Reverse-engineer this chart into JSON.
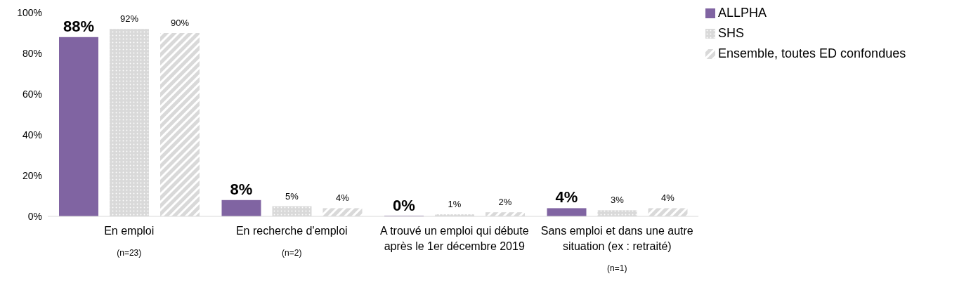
{
  "chart_data": {
    "type": "bar",
    "categories": [
      "En emploi",
      "En recherche d'emploi",
      "A trouvé un emploi qui débute après le 1er décembre 2019",
      "Sans emploi et dans une autre situation (ex : retraité)"
    ],
    "series": [
      {
        "name": "ALLPHA",
        "color": "#8064a2",
        "values": [
          88,
          8,
          0,
          4
        ],
        "value_labels": [
          "88%",
          "8%",
          "0%",
          "4%"
        ]
      },
      {
        "name": "SHS",
        "color": "#d9d9d9",
        "values": [
          92,
          5,
          1,
          3
        ],
        "value_labels": [
          "92%",
          "5%",
          "1%",
          "3%"
        ]
      },
      {
        "name": "Ensemble, toutes ED confondues",
        "color": "#d9d9d9",
        "values": [
          90,
          4,
          2,
          4
        ],
        "value_labels": [
          "90%",
          "4%",
          "2%",
          "4%"
        ]
      }
    ],
    "ylim": [
      0,
      100
    ],
    "yticks": [
      {
        "value": 0,
        "label": "0%"
      },
      {
        "value": 20,
        "label": "20%"
      },
      {
        "value": 40,
        "label": "40%"
      },
      {
        "value": 60,
        "label": "60%"
      },
      {
        "value": 80,
        "label": "80%"
      },
      {
        "value": 100,
        "label": "100%"
      }
    ],
    "annotations": [
      "(n=23)",
      "(n=2)",
      "(n=1)"
    ],
    "legend": "top right",
    "grid": false
  }
}
